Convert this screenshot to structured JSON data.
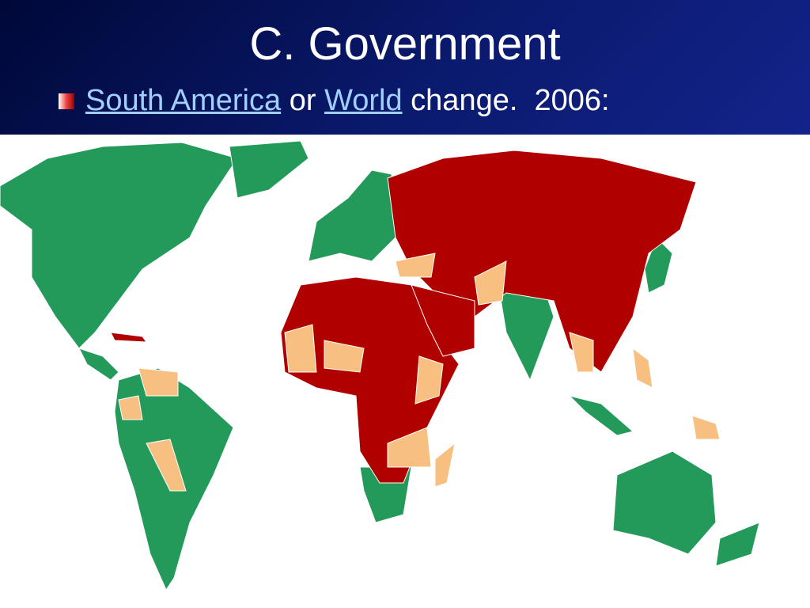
{
  "header": {
    "title": "C. Government"
  },
  "bullet": {
    "link1": "South America",
    "text1": "or",
    "link2": "World",
    "text2": "change.  2006:"
  }
}
